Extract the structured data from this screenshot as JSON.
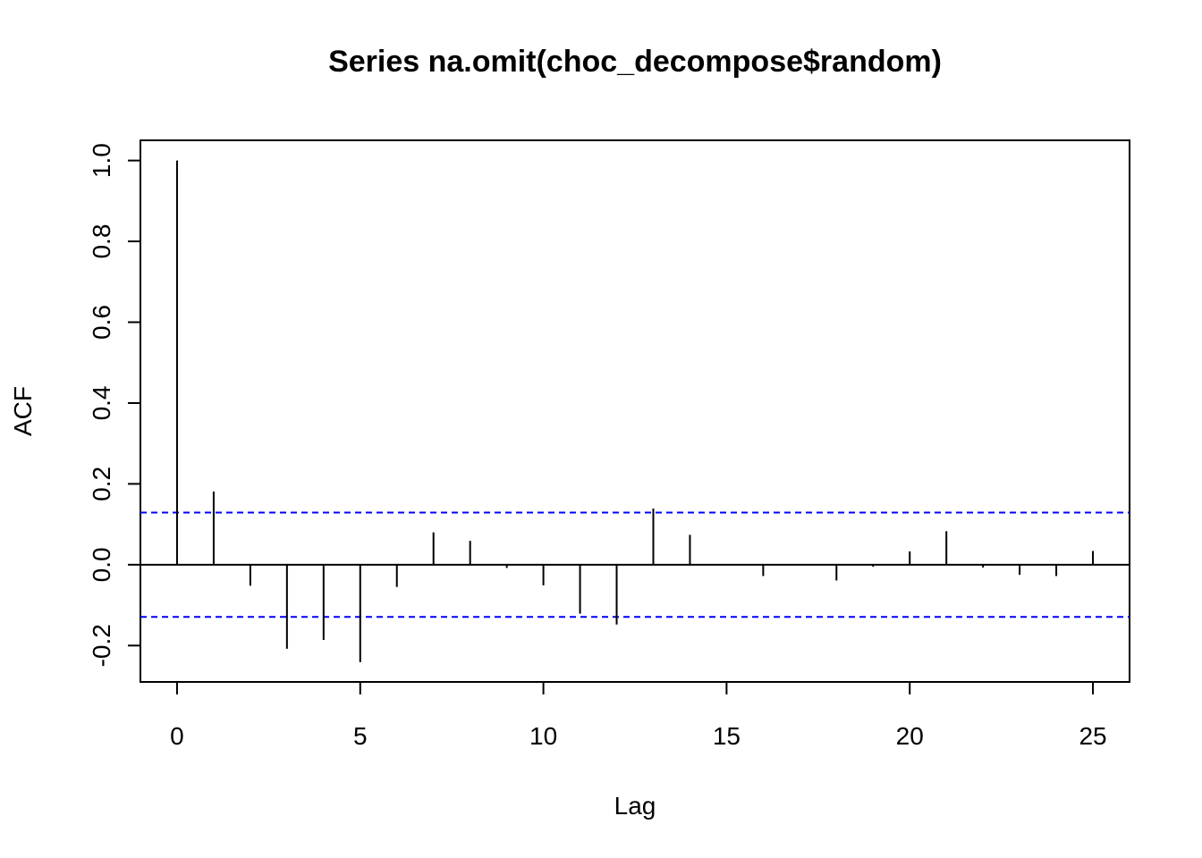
{
  "chart_data": {
    "type": "acf",
    "title": "Series  na.omit(choc_decompose$random)",
    "xlabel": "Lag",
    "ylabel": "ACF",
    "xlim": [
      -1,
      26
    ],
    "ylim": [
      -0.29,
      1.05
    ],
    "x_ticks": [
      "0",
      "5",
      "10",
      "15",
      "20",
      "25"
    ],
    "y_ticks": [
      "-0.2",
      "0.0",
      "0.2",
      "0.4",
      "0.6",
      "0.8",
      "1.0"
    ],
    "ci_upper": 0.129,
    "ci_lower": -0.129,
    "ci_color": "#0000ff",
    "line_color": "#000000",
    "lags": [
      0,
      1,
      2,
      3,
      4,
      5,
      6,
      7,
      8,
      9,
      10,
      11,
      12,
      13,
      14,
      15,
      16,
      17,
      18,
      19,
      20,
      21,
      22,
      23,
      24,
      25
    ],
    "acf": [
      1.0,
      0.181,
      -0.052,
      -0.208,
      -0.186,
      -0.241,
      -0.055,
      0.08,
      0.059,
      -0.008,
      -0.051,
      -0.121,
      -0.148,
      0.139,
      0.074,
      -0.001,
      -0.028,
      0.0,
      -0.039,
      -0.005,
      0.033,
      0.083,
      -0.007,
      -0.025,
      -0.028,
      0.034
    ]
  }
}
